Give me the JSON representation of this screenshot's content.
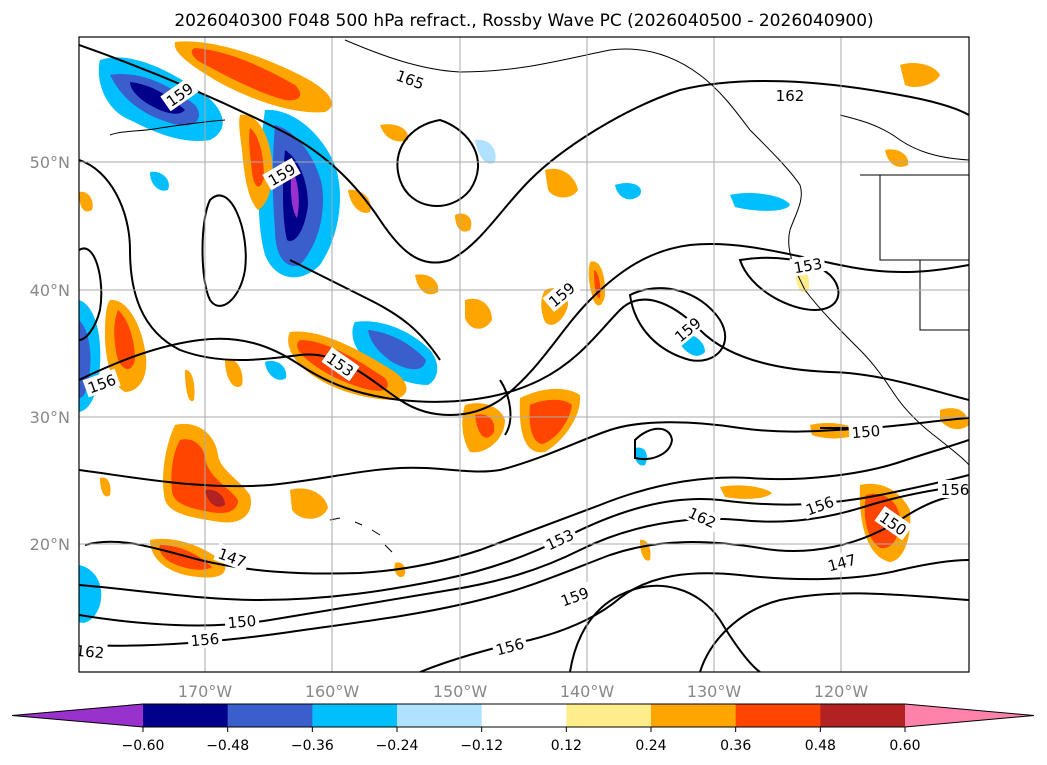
{
  "chart_data": {
    "type": "contour map",
    "title": "2026040300 F048 500 hPa refract., Rossby Wave PC (2026040500 - 2026040900)",
    "x_tick_labels": [
      "170°W",
      "160°W",
      "150°W",
      "140°W",
      "130°W",
      "120°W"
    ],
    "y_tick_labels": [
      "20°N",
      "30°N",
      "40°N",
      "50°N"
    ],
    "grid": true,
    "colorbar": {
      "orientation": "horizontal",
      "extend": "both",
      "levels": [
        -0.6,
        -0.48,
        -0.36,
        -0.24,
        -0.12,
        0.12,
        0.24,
        0.36,
        0.48,
        0.6
      ],
      "tick_labels": [
        "−0.60",
        "−0.48",
        "−0.36",
        "−0.24",
        "−0.12",
        "0.12",
        "0.24",
        "0.36",
        "0.48",
        "0.60"
      ],
      "colors": [
        "#9932CC",
        "#00008B",
        "#3A5FCD",
        "#00BFFF",
        "#B0E2FF",
        "#FFFFFF",
        "#FFEC8B",
        "#FFA500",
        "#FF4500",
        "#B22222",
        "#FF82AB"
      ]
    },
    "contour_labels": [
      {
        "text": "165"
      },
      {
        "text": "162"
      },
      {
        "text": "159"
      },
      {
        "text": "159"
      },
      {
        "text": "159"
      },
      {
        "text": "159"
      },
      {
        "text": "153"
      },
      {
        "text": "153"
      },
      {
        "text": "156"
      },
      {
        "text": "150"
      },
      {
        "text": "150"
      },
      {
        "text": "147"
      },
      {
        "text": "147"
      },
      {
        "text": "156"
      },
      {
        "text": "162"
      },
      {
        "text": "153"
      },
      {
        "text": "159"
      },
      {
        "text": "156"
      },
      {
        "text": "150"
      },
      {
        "text": "156"
      },
      {
        "text": "162"
      },
      {
        "text": "156"
      }
    ]
  }
}
